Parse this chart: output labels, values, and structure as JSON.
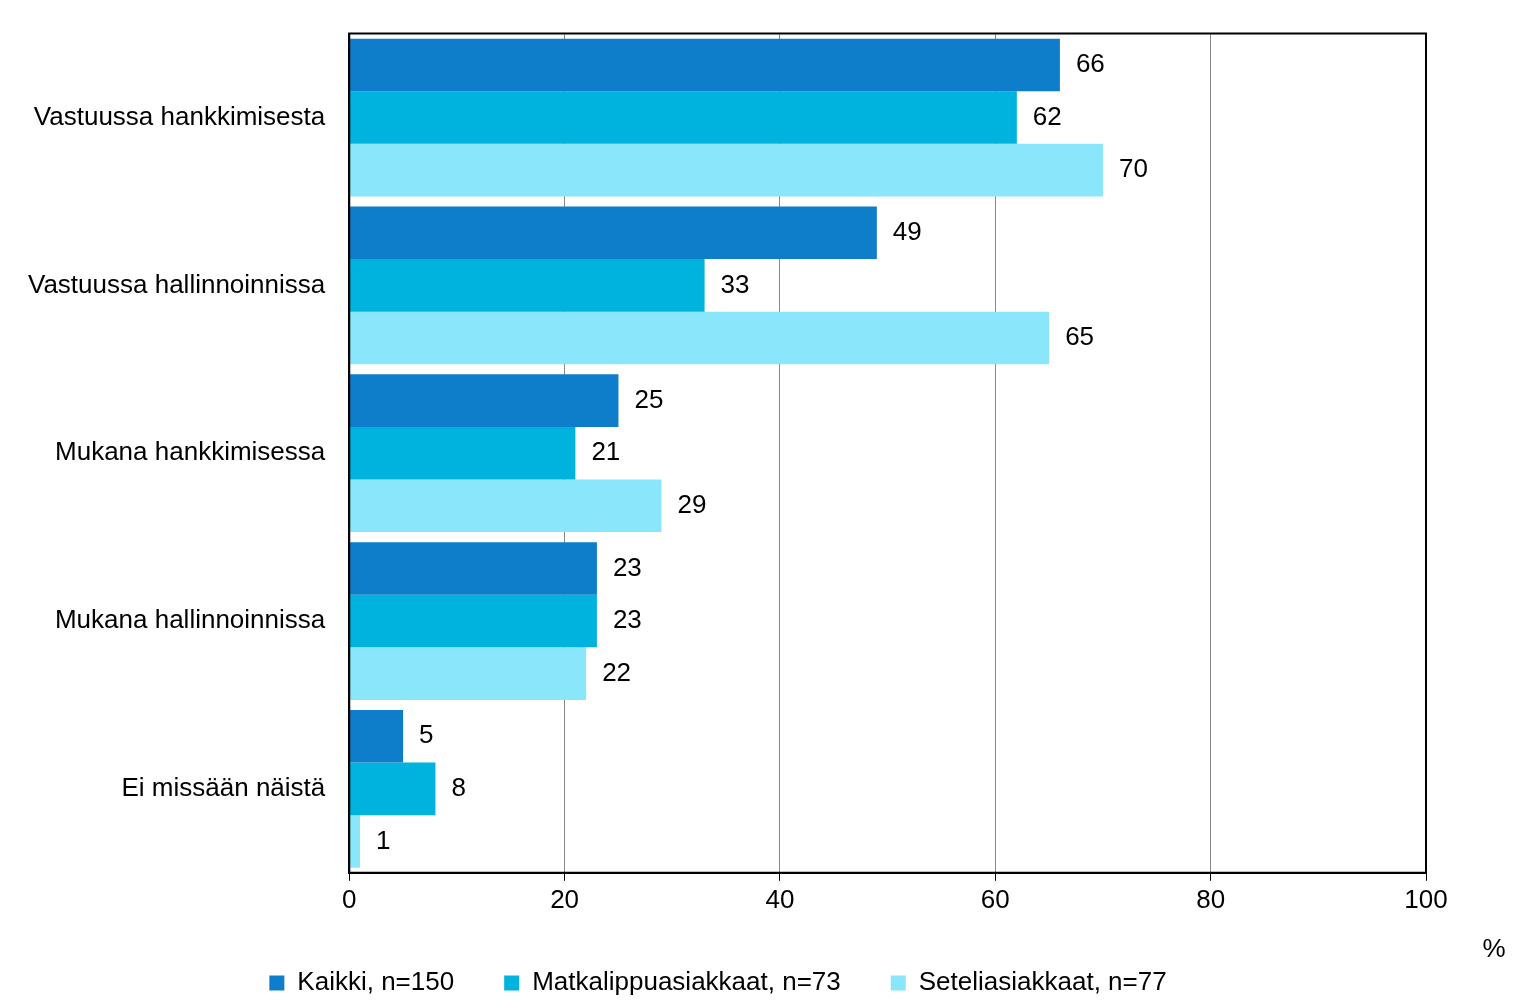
{
  "chart_data": {
    "type": "bar",
    "orientation": "horizontal",
    "xlabel": "%",
    "categories": [
      "Vastuussa hankkimisesta",
      "Vastuussa hallinnoinnissa",
      "Mukana hankkimisessa",
      "Mukana hallinnoinnissa",
      "Ei missään näistä"
    ],
    "series": [
      {
        "name": "Kaikki, n=150",
        "color": "#0e7ecb",
        "values": [
          66,
          49,
          25,
          23,
          5
        ]
      },
      {
        "name": "Matkalippuasiakkaat, n=73",
        "color": "#00b2de",
        "values": [
          62,
          33,
          21,
          23,
          8
        ]
      },
      {
        "name": "Seteliasiakkaat, n=77",
        "color": "#8ae7fb",
        "values": [
          70,
          65,
          29,
          22,
          1
        ]
      }
    ],
    "xlim": [
      0,
      100
    ],
    "xticks": [
      0,
      20,
      40,
      60,
      80,
      100
    ],
    "grid": "x",
    "legend": "bottom",
    "data_labels": true
  }
}
